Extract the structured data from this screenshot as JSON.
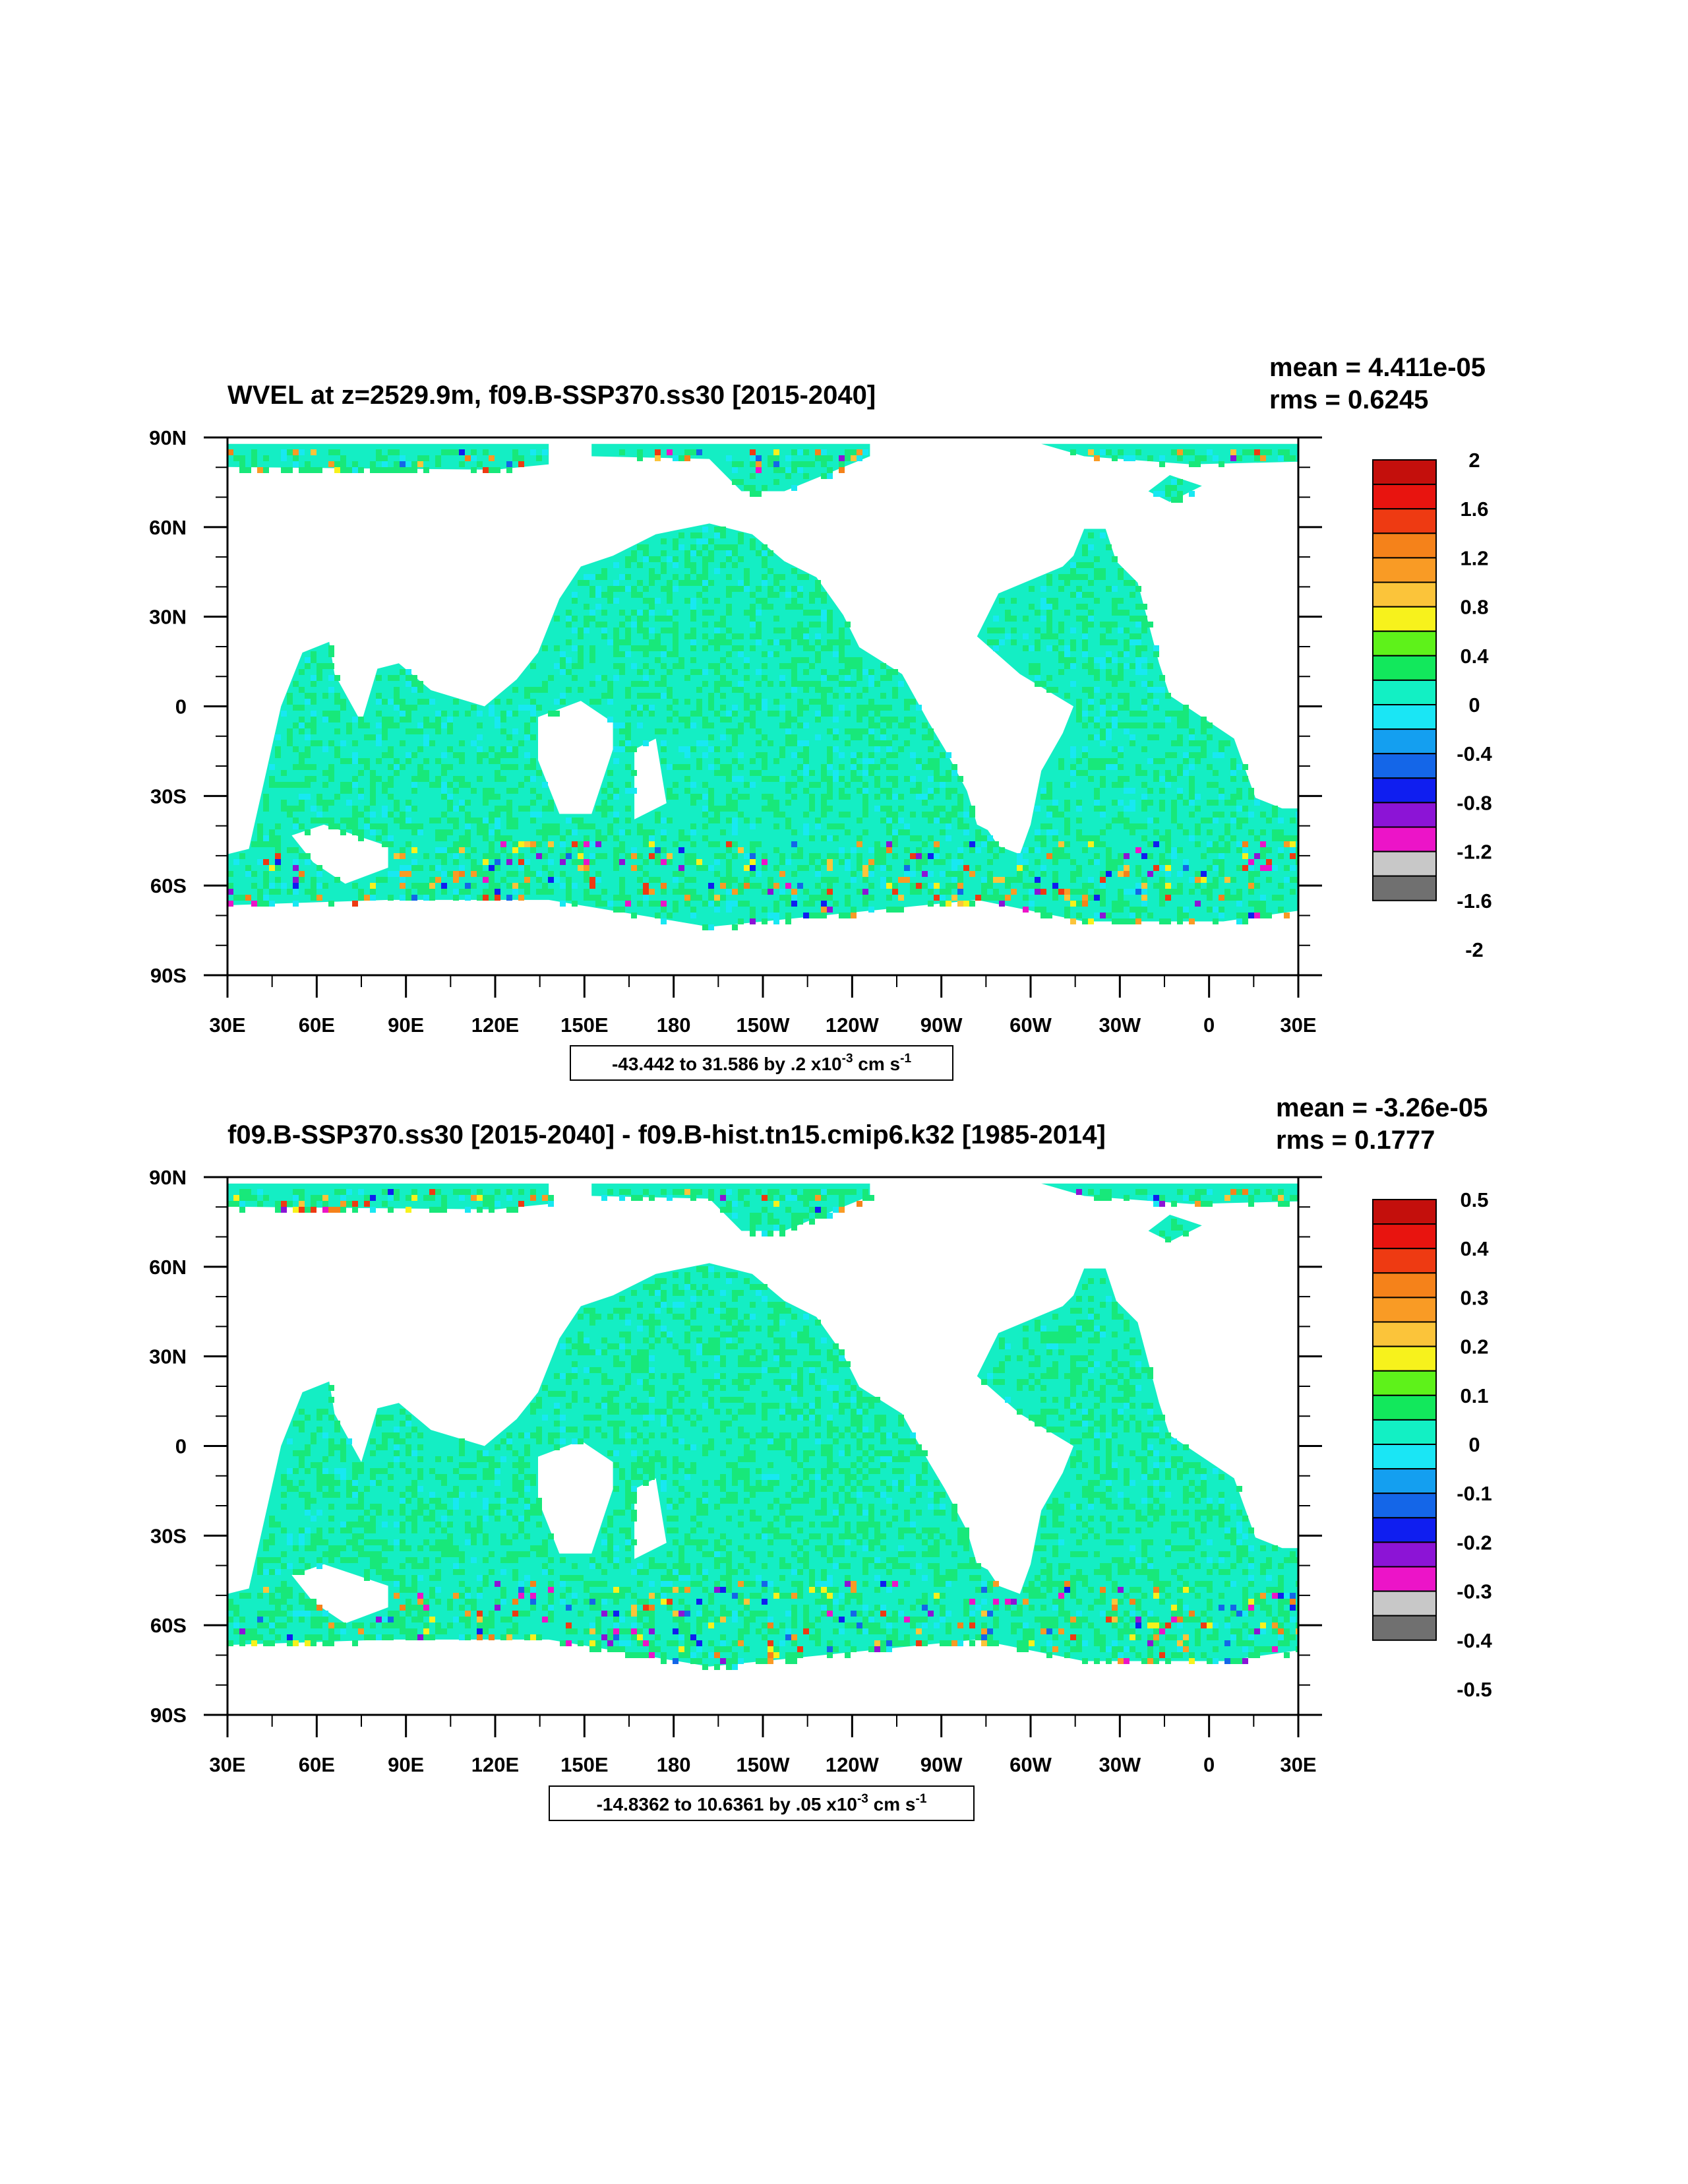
{
  "panels": [
    {
      "title": "WVEL at z=2529.9m, f09.B-SSP370.ss30 [2015-2040]",
      "mean_text": "mean = 4.411e-05",
      "rms_text": "rms = 0.6245",
      "range_text": "-43.442 to 31.586 by .2 x10",
      "range_exp": "-3",
      "range_unit": " cm s",
      "range_unit_exp": "-1",
      "lat_labels": [
        "90N",
        "60N",
        "30N",
        "0",
        "30S",
        "60S",
        "90S"
      ],
      "lon_labels": [
        "30E",
        "60E",
        "90E",
        "120E",
        "150E",
        "180",
        "150W",
        "120W",
        "90W",
        "60W",
        "30W",
        "0",
        "30E"
      ],
      "colorbar_labels": [
        "2",
        "1.6",
        "1.2",
        "0.8",
        "0.4",
        "0",
        "-0.4",
        "-0.8",
        "-1.2",
        "-1.6",
        "-2"
      ]
    },
    {
      "title": "f09.B-SSP370.ss30 [2015-2040] - f09.B-hist.tn15.cmip6.k32 [1985-2014]",
      "mean_text": "mean = -3.26e-05",
      "rms_text": "rms = 0.1777",
      "range_text": "-14.8362 to 10.6361 by .05 x10",
      "range_exp": "-3",
      "range_unit": " cm s",
      "range_unit_exp": "-1",
      "lat_labels": [
        "90N",
        "60N",
        "30N",
        "0",
        "30S",
        "60S",
        "90S"
      ],
      "lon_labels": [
        "30E",
        "60E",
        "90E",
        "120E",
        "150E",
        "180",
        "150W",
        "120W",
        "90W",
        "60W",
        "30W",
        "0",
        "30E"
      ],
      "colorbar_labels": [
        "0.5",
        "0.4",
        "0.3",
        "0.2",
        "0.1",
        "0",
        "-0.1",
        "-0.2",
        "-0.3",
        "-0.4",
        "-0.5"
      ]
    }
  ],
  "colorbar_colors": [
    "#c40f0c",
    "#e8140f",
    "#ee3a12",
    "#f5821a",
    "#f99b25",
    "#fbc43a",
    "#f7f21c",
    "#5ef21a",
    "#12e85c",
    "#12f0c4",
    "#1ae6f5",
    "#149ff0",
    "#1466e8",
    "#0f1ef0",
    "#8c14d6",
    "#ec14c8",
    "#c8c8c8",
    "#707070"
  ],
  "map_colors": {
    "ocean_main": "#14eec4",
    "ocean_cyan": "#18e8f2",
    "ocean_green": "#18e87a",
    "land": "#ffffff"
  }
}
